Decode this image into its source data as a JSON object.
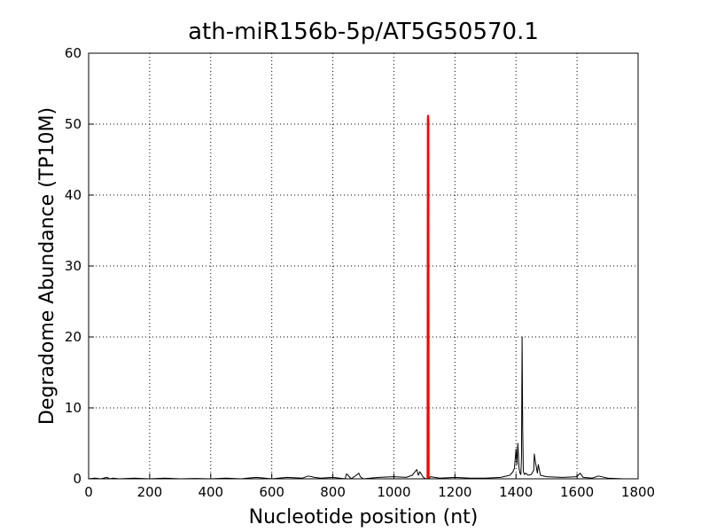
{
  "chart_data": {
    "type": "line",
    "title": "ath-miR156b-5p/AT5G50570.1",
    "x_label": "Nucleotide position (nt)",
    "y_label": "Degradome Abundance (TP10M)",
    "xlim": [
      0,
      1800
    ],
    "xticks": [
      0,
      200,
      400,
      600,
      800,
      1000,
      1200,
      1400,
      1600,
      1800
    ],
    "ylim": [
      0,
      60
    ],
    "yticks": [
      0,
      10,
      20,
      30,
      40,
      50,
      60
    ],
    "grid": true,
    "series": [
      {
        "color": "#000000",
        "x": [
          0,
          20,
          40,
          60,
          70,
          80,
          100,
          150,
          200,
          250,
          300,
          350,
          400,
          450,
          500,
          520,
          550,
          600,
          650,
          700,
          720,
          740,
          760,
          800,
          840,
          845,
          850,
          860,
          880,
          885,
          890,
          900,
          950,
          1000,
          1040,
          1060,
          1075,
          1080,
          1085,
          1095,
          1100,
          1105,
          1110,
          1112,
          1114,
          1120,
          1150,
          1200,
          1250,
          1300,
          1350,
          1380,
          1390,
          1395,
          1400,
          1403,
          1406,
          1410,
          1413,
          1416,
          1418,
          1420,
          1422,
          1424,
          1428,
          1432,
          1440,
          1450,
          1458,
          1460,
          1463,
          1466,
          1470,
          1473,
          1480,
          1500,
          1550,
          1600,
          1610,
          1620,
          1650,
          1670,
          1700,
          1750
        ],
        "values": [
          0,
          0.1,
          0,
          0.2,
          0,
          0.1,
          0,
          0.1,
          0,
          0.1,
          0,
          0.05,
          0,
          0.1,
          0,
          0.1,
          0.2,
          0,
          0.2,
          0.1,
          0.4,
          0.2,
          0.1,
          0.2,
          0,
          0.7,
          0.5,
          0,
          0.6,
          0.8,
          0.3,
          0,
          0.2,
          0.3,
          0.2,
          0.5,
          1.3,
          0.5,
          1,
          0.3,
          0.1,
          0,
          0,
          12.5,
          0,
          0.3,
          0.1,
          0.2,
          0.1,
          0.1,
          0.2,
          0.5,
          1,
          1.5,
          4.2,
          2,
          5,
          1.5,
          0.8,
          0.6,
          3,
          20,
          7,
          1,
          0.6,
          0.8,
          0.5,
          0.6,
          1.2,
          3.5,
          2.5,
          1.8,
          0.8,
          2,
          0.5,
          0.3,
          0.2,
          0.3,
          0.8,
          0.2,
          0.1,
          0.4,
          0.1,
          0
        ]
      },
      {
        "color": "#ff0000",
        "x": [
          1110,
          1111,
          1112,
          1113,
          1114
        ],
        "values": [
          0,
          50.8,
          51.2,
          50.5,
          0
        ]
      }
    ]
  }
}
